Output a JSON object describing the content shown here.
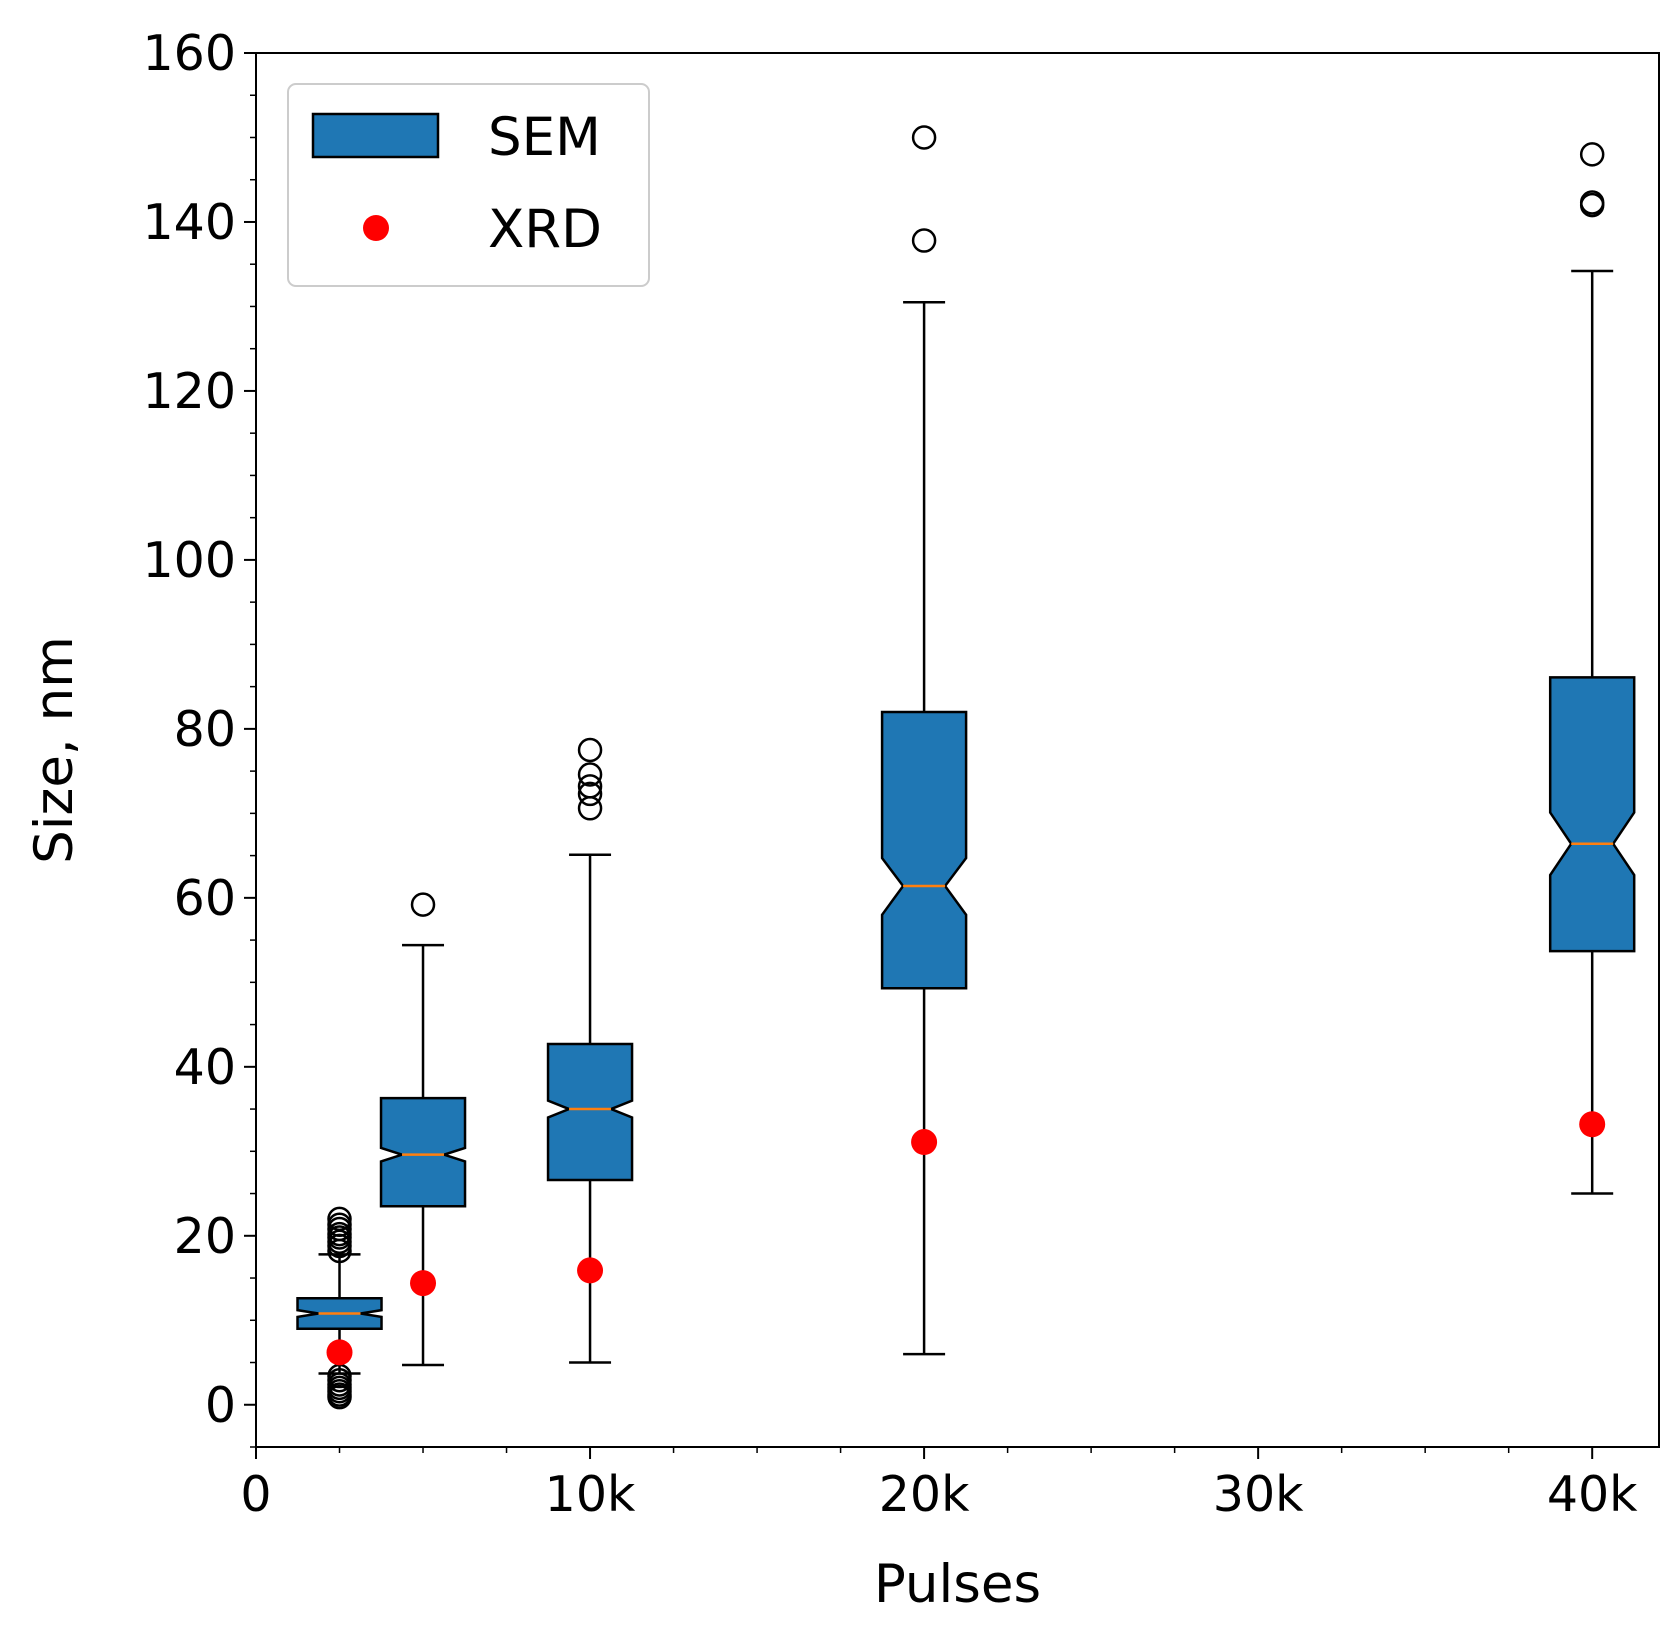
{
  "chart_data": {
    "type": "box",
    "xlabel": "Pulses",
    "ylabel": "Size, nm",
    "xlim": [
      0,
      42000
    ],
    "ylim": [
      -5,
      160
    ],
    "x_ticks": [
      0,
      10000,
      20000,
      30000,
      40000
    ],
    "x_tick_labels": [
      "0",
      "10k",
      "20k",
      "30k",
      "40k"
    ],
    "y_ticks": [
      0,
      20,
      40,
      60,
      80,
      100,
      120,
      140,
      160
    ],
    "y_tick_labels": [
      "0",
      "20",
      "40",
      "60",
      "80",
      "100",
      "120",
      "140",
      "160"
    ],
    "grid": false,
    "legend": {
      "placement": "upper-left",
      "entries": [
        {
          "label": "SEM",
          "marker": "box",
          "color": "#1f77b4"
        },
        {
          "label": "XRD",
          "marker": "dot",
          "color": "#ff0000"
        }
      ]
    },
    "colors": {
      "box_fill": "#1f77b4",
      "median": "#ff7f0e",
      "xrd": "#ff0000",
      "edge": "#000000"
    },
    "series": [
      {
        "name": "SEM",
        "notched": true,
        "boxes": [
          {
            "x": 2500,
            "whisker_low": 3.7,
            "q1": 9.0,
            "notch_low": 10.4,
            "median": 10.8,
            "notch_high": 11.2,
            "q3": 12.6,
            "whisker_high": 17.8,
            "outliers": [
              22.0,
              21.3,
              20.8,
              20.2,
              19.8,
              19.3,
              18.8,
              18.2,
              3.4,
              2.9,
              2.4,
              2.0,
              1.6,
              1.2,
              0.9
            ]
          },
          {
            "x": 5000,
            "whisker_low": 4.7,
            "q1": 23.5,
            "notch_low": 28.8,
            "median": 29.6,
            "notch_high": 30.4,
            "q3": 36.3,
            "whisker_high": 54.4,
            "outliers": [
              59.2
            ]
          },
          {
            "x": 10000,
            "whisker_low": 5.0,
            "q1": 26.6,
            "notch_low": 34.0,
            "median": 35.0,
            "notch_high": 36.0,
            "q3": 42.7,
            "whisker_high": 65.1,
            "outliers": [
              77.5,
              74.6,
              73.2,
              72.3,
              70.6
            ]
          },
          {
            "x": 20000,
            "whisker_low": 6.0,
            "q1": 49.3,
            "notch_low": 58.0,
            "median": 61.4,
            "notch_high": 64.7,
            "q3": 82.0,
            "whisker_high": 130.5,
            "outliers": [
              150.0,
              137.8
            ]
          },
          {
            "x": 40000,
            "whisker_low": 25.0,
            "q1": 53.7,
            "notch_low": 62.7,
            "median": 66.4,
            "notch_high": 70.1,
            "q3": 86.1,
            "whisker_high": 134.2,
            "outliers": [
              148.0,
              142.3,
              142.0
            ]
          }
        ]
      },
      {
        "name": "XRD",
        "x": [
          2500,
          5000,
          10000,
          20000,
          40000
        ],
        "values": [
          6.2,
          14.4,
          15.9,
          31.1,
          33.2
        ]
      }
    ]
  }
}
